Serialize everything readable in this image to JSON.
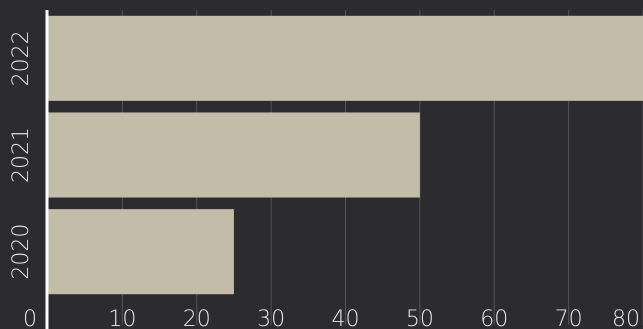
{
  "chart_data": {
    "type": "bar",
    "orientation": "horizontal",
    "categories": [
      "2020",
      "2021",
      "2022"
    ],
    "values": [
      25,
      50,
      80
    ],
    "x_ticks": [
      "0",
      "10",
      "20",
      "30",
      "40",
      "50",
      "60",
      "70",
      "80"
    ],
    "xlim": [
      0,
      80
    ],
    "title": "",
    "xlabel": "",
    "ylabel": "",
    "grid": "vertical",
    "legend": "none",
    "colors": {
      "background": "#2c2b30",
      "bar": "#c2bca8",
      "grid": "#55545a",
      "axis": "#ffffff",
      "text": "#ebe8e0"
    }
  }
}
